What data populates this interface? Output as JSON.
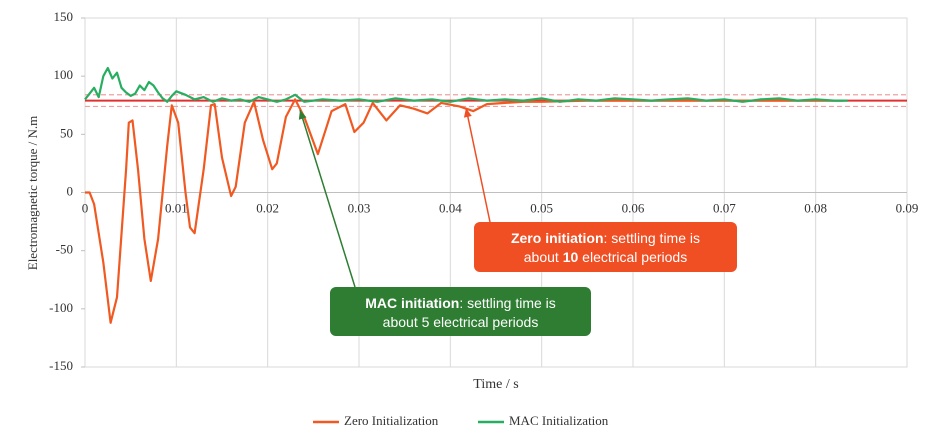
{
  "chart_data": {
    "type": "line",
    "y_label": "Electromagnetic torque / N.m",
    "x_label": "Time / s",
    "xlim": [
      0,
      0.09
    ],
    "xticks": [
      0,
      0.01,
      0.02,
      0.03,
      0.04,
      0.05,
      0.06,
      0.07,
      0.08,
      0.09
    ],
    "ylim": [
      -150,
      150
    ],
    "yticks": [
      -150,
      -100,
      -50,
      0,
      50,
      100,
      150
    ],
    "grid": "x",
    "legend": "bottom",
    "reference_lines": [
      {
        "value": 79,
        "color": "#e03030",
        "style": "solid"
      },
      {
        "value": 84,
        "color": "#f0a0a0",
        "style": "dashed"
      },
      {
        "value": 74,
        "color": "#f0a0a0",
        "style": "dashed"
      }
    ],
    "series": [
      {
        "name": "Zero Initialization",
        "color": "#f05a22",
        "x": [
          0,
          0.0005,
          0.001,
          0.002,
          0.0028,
          0.0035,
          0.0045,
          0.0048,
          0.0052,
          0.0058,
          0.0065,
          0.0072,
          0.008,
          0.009,
          0.0095,
          0.0102,
          0.011,
          0.0115,
          0.012,
          0.013,
          0.0138,
          0.0142,
          0.015,
          0.016,
          0.0165,
          0.0175,
          0.0185,
          0.0195,
          0.0205,
          0.021,
          0.022,
          0.023,
          0.024,
          0.0255,
          0.027,
          0.0285,
          0.0295,
          0.0305,
          0.0315,
          0.033,
          0.0345,
          0.036,
          0.0375,
          0.039,
          0.041,
          0.0425,
          0.044,
          0.046,
          0.048,
          0.05,
          0.055,
          0.06,
          0.07,
          0.08,
          0.083
        ],
        "values": [
          0,
          0,
          -10,
          -60,
          -112,
          -90,
          20,
          60,
          62,
          20,
          -40,
          -76,
          -40,
          40,
          75,
          60,
          0,
          -30,
          -35,
          20,
          75,
          76,
          30,
          -3,
          5,
          60,
          78,
          45,
          20,
          25,
          65,
          80,
          65,
          33,
          70,
          76,
          52,
          60,
          77,
          62,
          75,
          72,
          68,
          77,
          74,
          70,
          76,
          77,
          78,
          78,
          79,
          79,
          79,
          79,
          79
        ]
      },
      {
        "name": "MAC Initialization",
        "color": "#27ae60",
        "x": [
          0,
          0.001,
          0.0015,
          0.002,
          0.0025,
          0.003,
          0.0035,
          0.004,
          0.0045,
          0.005,
          0.0055,
          0.006,
          0.0065,
          0.007,
          0.0075,
          0.008,
          0.0085,
          0.009,
          0.0095,
          0.01,
          0.011,
          0.012,
          0.013,
          0.014,
          0.015,
          0.016,
          0.017,
          0.018,
          0.019,
          0.02,
          0.021,
          0.022,
          0.023,
          0.024,
          0.026,
          0.028,
          0.03,
          0.032,
          0.034,
          0.036,
          0.038,
          0.04,
          0.042,
          0.044,
          0.046,
          0.048,
          0.05,
          0.052,
          0.054,
          0.056,
          0.058,
          0.06,
          0.062,
          0.064,
          0.066,
          0.068,
          0.07,
          0.072,
          0.074,
          0.076,
          0.078,
          0.08,
          0.082,
          0.0835
        ],
        "values": [
          80,
          90,
          82,
          100,
          107,
          98,
          103,
          90,
          86,
          83,
          85,
          92,
          88,
          95,
          92,
          86,
          81,
          78,
          83,
          87,
          84,
          80,
          82,
          78,
          81,
          79,
          80,
          78,
          82,
          80,
          78,
          80,
          84,
          78,
          80,
          79,
          80,
          78,
          81,
          79,
          80,
          78,
          81,
          79,
          80,
          79,
          81,
          78,
          80,
          79,
          81,
          80,
          79,
          80,
          81,
          79,
          80,
          78,
          80,
          81,
          79,
          80,
          79,
          79
        ]
      }
    ],
    "annotations": [
      {
        "color": "#f04e23",
        "lines": [
          [
            {
              "text": "Zero initiation",
              "bold": true
            },
            {
              "text": ": settling time is",
              "bold": false
            }
          ],
          [
            {
              "text": "about ",
              "bold": false
            },
            {
              "text": "10",
              "bold": true
            },
            {
              "text": " electrical periods",
              "bold": false
            }
          ]
        ]
      },
      {
        "color": "#2e7d32",
        "lines": [
          [
            {
              "text": "MAC initiation",
              "bold": true
            },
            {
              "text": ": settling time is",
              "bold": false
            }
          ],
          [
            {
              "text": "about 5 electrical periods",
              "bold": false
            }
          ]
        ]
      }
    ]
  }
}
